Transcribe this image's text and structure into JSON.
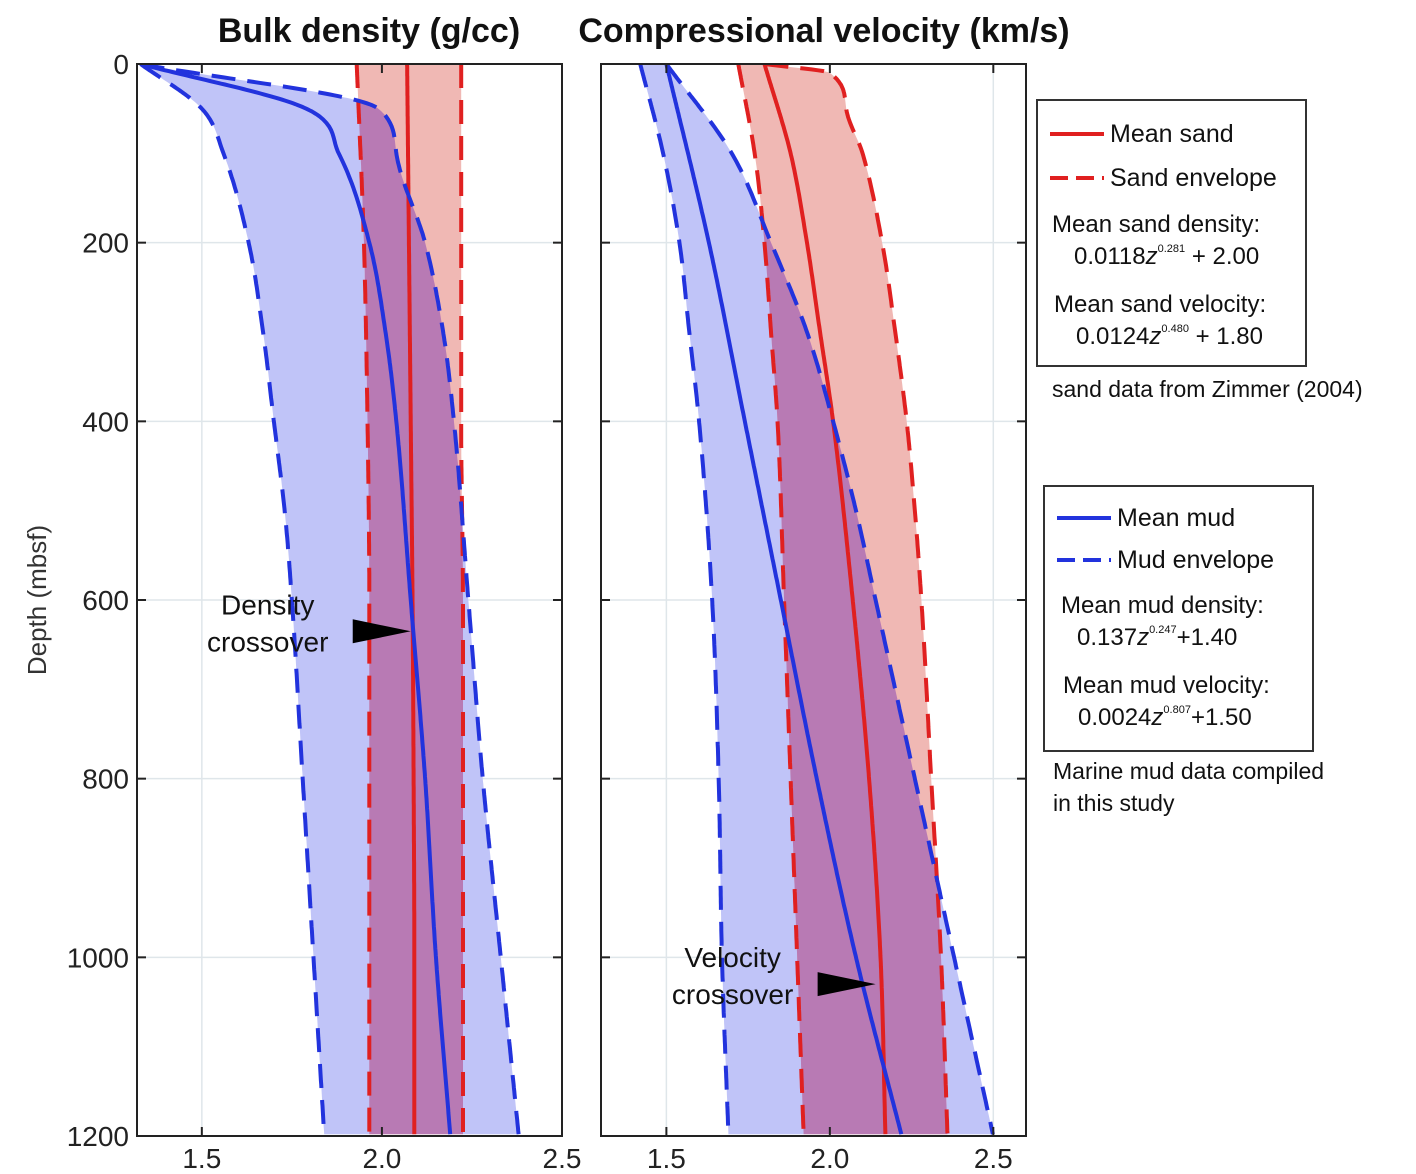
{
  "chart_data": [
    {
      "type": "line",
      "title": "Bulk density (g/cc)",
      "xlabel": "Bulk density (g/cc)",
      "ylabel": "Depth (mbsf)",
      "xlim": [
        1.32,
        2.5
      ],
      "ylim": [
        1200,
        0
      ],
      "x_ticks": [
        "1.5",
        "2.0",
        "2.5"
      ],
      "x_tick_values": [
        1.5,
        2.0,
        2.5
      ],
      "y_ticks": [
        "0",
        "200",
        "400",
        "600",
        "800",
        "1000",
        "1200"
      ],
      "y_tick_values": [
        0,
        200,
        400,
        600,
        800,
        1000,
        1200
      ],
      "grid": true,
      "depth": [
        0,
        200,
        400,
        600,
        800,
        1000,
        1200
      ],
      "series": [
        {
          "name": "Mean sand",
          "style": "solid",
          "color": "#e02020",
          "depth": [
            0,
            200,
            400,
            600,
            800,
            1000,
            1200
          ],
          "values": [
            2.07,
            2.075,
            2.08,
            2.085,
            2.088,
            2.09,
            2.09
          ]
        },
        {
          "name": "Sand envelope (lower)",
          "style": "dashed",
          "color": "#e02020",
          "depth": [
            0,
            200,
            400,
            600,
            800,
            1000,
            1200
          ],
          "values": [
            1.93,
            1.95,
            1.96,
            1.965,
            1.965,
            1.965,
            1.965
          ]
        },
        {
          "name": "Sand envelope (upper)",
          "style": "dashed",
          "color": "#e02020",
          "depth": [
            0,
            200,
            400,
            600,
            800,
            1000,
            1200
          ],
          "values": [
            2.22,
            2.22,
            2.22,
            2.225,
            2.225,
            2.225,
            2.225
          ]
        },
        {
          "name": "Mean mud",
          "style": "solid",
          "color": "#2233dd",
          "depth": [
            0,
            50,
            100,
            200,
            300,
            400,
            600,
            800,
            1000,
            1200
          ],
          "values": [
            1.33,
            1.79,
            1.88,
            1.965,
            2.01,
            2.04,
            2.08,
            2.12,
            2.15,
            2.19
          ]
        },
        {
          "name": "Mud envelope (lower)",
          "style": "dashed",
          "color": "#2233dd",
          "depth": [
            0,
            50,
            100,
            200,
            300,
            400,
            500,
            600,
            800,
            1000,
            1200
          ],
          "values": [
            1.33,
            1.5,
            1.56,
            1.63,
            1.67,
            1.7,
            1.73,
            1.75,
            1.78,
            1.81,
            1.84
          ]
        },
        {
          "name": "Mud envelope (upper)",
          "style": "dashed",
          "color": "#2233dd",
          "depth": [
            0,
            50,
            100,
            200,
            300,
            400,
            600,
            800,
            1000,
            1200
          ],
          "values": [
            1.33,
            1.99,
            2.04,
            2.12,
            2.17,
            2.2,
            2.24,
            2.28,
            2.33,
            2.38
          ]
        }
      ],
      "annotations": [
        {
          "text_lines": [
            "Density",
            "crossover"
          ],
          "depth": 635,
          "x": 2.08
        }
      ]
    },
    {
      "type": "line",
      "title": "Compressional velocity (km/s)",
      "xlabel": "Compressional velocity (km/s)",
      "ylabel": "Depth (mbsf)",
      "xlim": [
        1.3,
        2.6
      ],
      "ylim": [
        1200,
        0
      ],
      "x_ticks": [
        "1.5",
        "2.0",
        "2.5"
      ],
      "x_tick_values": [
        1.5,
        2.0,
        2.5
      ],
      "grid": true,
      "series": [
        {
          "name": "Mean sand",
          "style": "solid",
          "color": "#e02020",
          "depth": [
            0,
            100,
            200,
            300,
            400,
            600,
            800,
            1000,
            1200
          ],
          "values": [
            1.8,
            1.88,
            1.93,
            1.97,
            2.01,
            2.07,
            2.12,
            2.155,
            2.17
          ]
        },
        {
          "name": "Sand envelope (lower)",
          "style": "dashed",
          "color": "#e02020",
          "depth": [
            0,
            100,
            200,
            300,
            400,
            600,
            800,
            1000,
            1200
          ],
          "values": [
            1.72,
            1.77,
            1.8,
            1.82,
            1.84,
            1.86,
            1.88,
            1.9,
            1.92
          ]
        },
        {
          "name": "Sand envelope (upper)",
          "style": "dashed",
          "color": "#e02020",
          "depth": [
            0,
            10,
            50,
            100,
            200,
            300,
            400,
            500,
            600,
            800,
            1000,
            1200
          ],
          "values": [
            1.8,
            2.0,
            2.05,
            2.1,
            2.16,
            2.2,
            2.235,
            2.26,
            2.28,
            2.31,
            2.34,
            2.36
          ]
        },
        {
          "name": "Mean mud",
          "style": "solid",
          "color": "#2233dd",
          "depth": [
            0,
            200,
            400,
            600,
            800,
            1000,
            1200
          ],
          "values": [
            1.5,
            1.63,
            1.74,
            1.85,
            1.96,
            2.08,
            2.22
          ]
        },
        {
          "name": "Mud envelope (lower)",
          "style": "dashed",
          "color": "#2233dd",
          "depth": [
            0,
            100,
            200,
            300,
            400,
            600,
            800,
            1000,
            1200
          ],
          "values": [
            1.42,
            1.49,
            1.54,
            1.57,
            1.6,
            1.64,
            1.66,
            1.67,
            1.69
          ]
        },
        {
          "name": "Mud envelope (upper)",
          "style": "dashed",
          "color": "#2233dd",
          "depth": [
            0,
            100,
            200,
            300,
            400,
            500,
            600,
            700,
            800,
            900,
            1000,
            1100,
            1200
          ],
          "values": [
            1.5,
            1.7,
            1.82,
            1.93,
            2.01,
            2.08,
            2.14,
            2.2,
            2.26,
            2.32,
            2.38,
            2.44,
            2.5
          ]
        }
      ],
      "annotations": [
        {
          "text_lines": [
            "Velocity",
            "crossover"
          ],
          "depth": 1030,
          "x": 2.14
        }
      ]
    }
  ],
  "legend_sand": {
    "mean_label": "Mean sand",
    "envelope_label": "Sand envelope",
    "density_label": "Mean sand density:",
    "density_coef": "0.0118",
    "density_var": "z",
    "density_exp": "0.281",
    "density_const": " + 2.00",
    "velocity_label": "Mean sand velocity:",
    "velocity_coef": "0.0124",
    "velocity_var": "z",
    "velocity_exp": "0.480",
    "velocity_const": " + 1.80"
  },
  "legend_mud": {
    "mean_label": "Mean mud",
    "envelope_label": "Mud envelope",
    "density_label": "Mean mud density:",
    "density_coef": "0.137",
    "density_var": "z",
    "density_exp": "0.247",
    "density_const": "+1.40",
    "velocity_label": "Mean mud velocity:",
    "velocity_coef": "0.0024",
    "velocity_var": "z",
    "velocity_exp": "0.807",
    "velocity_const": "+1.50"
  },
  "notes": {
    "sand_source": "sand data from Zimmer (2004)",
    "mud_source_line1": "Marine mud data compiled",
    "mud_source_line2": "in this study"
  },
  "colors": {
    "sand": "#e02020",
    "mud": "#2233dd",
    "sand_fill": "#f0b8b4",
    "mud_fill": "#c0c4f8",
    "overlap_fill": "#b87ab4"
  }
}
